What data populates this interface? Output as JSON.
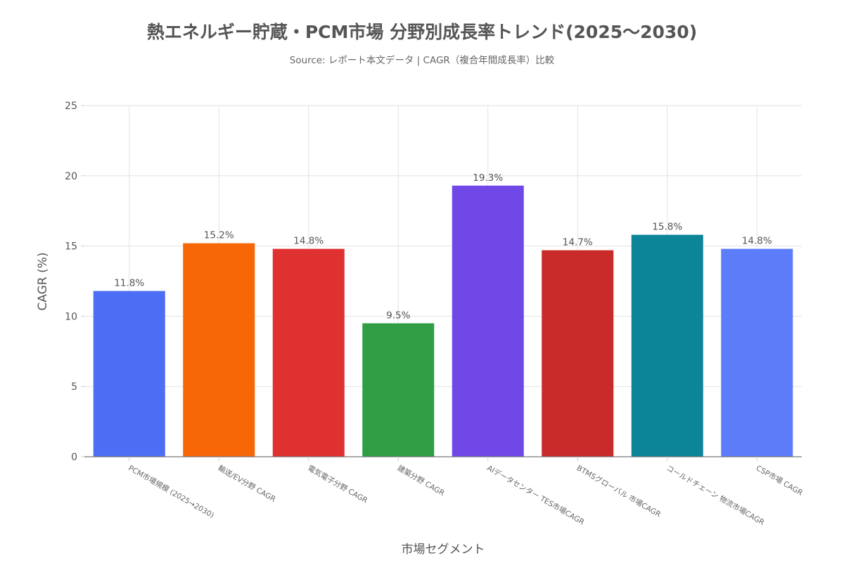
{
  "chart_data": {
    "type": "bar",
    "title": "熱エネルギー貯蔵・PCM市場 分野別成長率トレンド(2025〜2030)",
    "subtitle": "Source: レポート本文データ | CAGR（複合年間成長率）比較",
    "xlabel": "市場セグメント",
    "ylabel": "CAGR (%)",
    "ylim": [
      0,
      25
    ],
    "yticks": [
      0,
      5,
      10,
      15,
      20,
      25
    ],
    "grid": true,
    "categories": [
      "PCM市場規模 (2025→2030)",
      "輸送/EV分野 CAGR",
      "電気電子分野 CAGR",
      "建築分野 CAGR",
      "AIデータセンター TES市場CAGR",
      "BTMSグローバル 市場CAGR",
      "コールドチェーン 物流市場CAGR",
      "CSP市場 CAGR"
    ],
    "values": [
      11.8,
      15.2,
      14.8,
      9.5,
      19.3,
      14.7,
      15.8,
      14.8
    ],
    "data_labels": [
      "11.8%",
      "15.2%",
      "14.8%",
      "9.5%",
      "19.3%",
      "14.7%",
      "15.8%",
      "14.8%"
    ],
    "colors": [
      "#4c6ef5",
      "#f76707",
      "#e03131",
      "#2f9e44",
      "#7048e8",
      "#c92a2a",
      "#0c8599",
      "#5c7cfa"
    ]
  }
}
